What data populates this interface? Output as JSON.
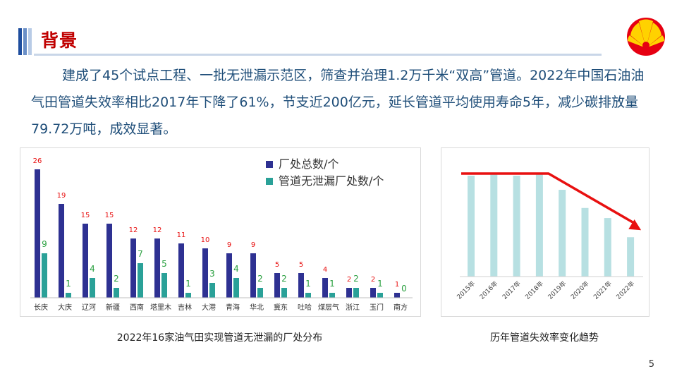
{
  "slide": {
    "title": "背景",
    "paragraph": "建成了45个试点工程、一批无泄漏示范区，筛查并治理1.2万千米“双高”管道。2022年中国石油油气田管道失效率相比2017年下降了61%，节支近200亿元，延长管道平均使用寿命5年，减少碳排放量79.72万吨，成效显著。",
    "left_caption": "2022年16家油气田实现管道无泄漏的厂处分布",
    "right_caption": "历年管道失效率变化趋势",
    "page_number": "5",
    "colors": {
      "title": "#c00000",
      "text": "#1f4e79",
      "navy": "#2e3192",
      "teal": "#2aa198",
      "red": "#e81010",
      "light_teal": "#b7e0e2"
    }
  },
  "chart_data": [
    {
      "type": "bar",
      "categories": [
        "长庆",
        "大庆",
        "辽河",
        "新疆",
        "西南",
        "塔里木",
        "吉林",
        "大港",
        "青海",
        "华北",
        "冀东",
        "吐哈",
        "煤层气",
        "浙江",
        "玉门",
        "南方"
      ],
      "series": [
        {
          "name": "厂处总数/个",
          "values": [
            26,
            19,
            15,
            15,
            12,
            12,
            11,
            10,
            9,
            9,
            5,
            5,
            4,
            2,
            2,
            1
          ],
          "color": "#2e3192",
          "label_color": "#e81010"
        },
        {
          "name": "管道无泄漏厂处数/个",
          "values": [
            9,
            1,
            4,
            2,
            7,
            5,
            1,
            3,
            4,
            2,
            2,
            1,
            1,
            2,
            1,
            0
          ],
          "color": "#2aa198",
          "label_color": "#2aa040"
        }
      ],
      "ylim": [
        0,
        26
      ],
      "legend": "top-right",
      "grid": false
    },
    {
      "type": "bar",
      "categories": [
        "2015年",
        "2016年",
        "2017年",
        "2018年",
        "2019年",
        "2020年",
        "2021年",
        "2022年"
      ],
      "values": [
        1.0,
        1.01,
        1.0,
        1.01,
        0.86,
        0.68,
        0.58,
        0.39
      ],
      "ylim": [
        0,
        1.1
      ],
      "bar_color": "#b7e0e2",
      "trend_arrow": {
        "color": "#e81010",
        "flat_until": "2018年",
        "ends_at": "2022年"
      },
      "grid": false
    }
  ]
}
